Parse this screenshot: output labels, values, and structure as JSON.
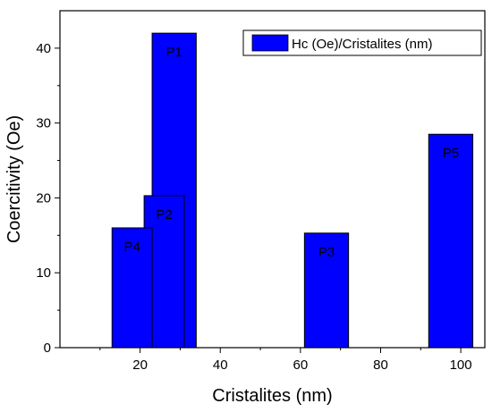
{
  "chart_data": {
    "type": "bar",
    "xlabel": "Cristalites (nm)",
    "ylabel": "Coercitivity (Oe)",
    "xlim": [
      0,
      106
    ],
    "ylim": [
      0,
      45
    ],
    "xticks": [
      20,
      40,
      60,
      80,
      100
    ],
    "yticks": [
      0,
      10,
      20,
      30,
      40
    ],
    "legend": {
      "label": "Hc (Oe)/Cristalites (nm)",
      "position": "top-right"
    },
    "bar_color": "#0000ff",
    "bars": [
      {
        "label": "P1",
        "x_start": 23,
        "x_end": 34,
        "value": 42
      },
      {
        "label": "P2",
        "x_start": 21,
        "x_end": 31,
        "value": 20.3
      },
      {
        "label": "P4",
        "x_start": 13,
        "x_end": 23,
        "value": 16
      },
      {
        "label": "P3",
        "x_start": 61,
        "x_end": 72,
        "value": 15.3
      },
      {
        "label": "P5",
        "x_start": 92,
        "x_end": 103,
        "value": 28.5
      }
    ]
  }
}
